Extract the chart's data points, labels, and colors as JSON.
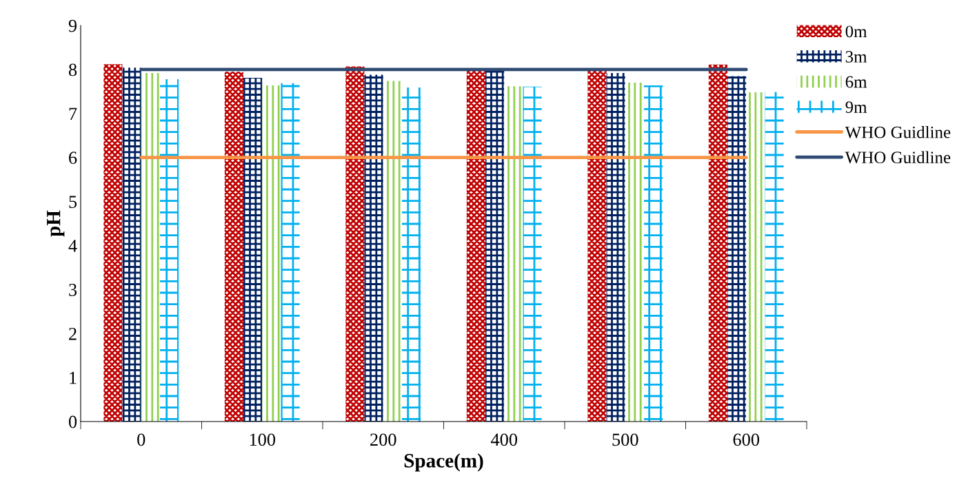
{
  "chart_data": {
    "type": "bar",
    "xlabel": "Space(m)",
    "ylabel": "pH",
    "categories": [
      "0",
      "100",
      "200",
      "400",
      "500",
      "600"
    ],
    "ylim": [
      0,
      9
    ],
    "yticks": [
      0,
      1,
      2,
      3,
      4,
      5,
      6,
      7,
      8,
      9
    ],
    "grid": false,
    "legend": "right",
    "series": [
      {
        "name": "0m",
        "color": "#c00000",
        "values": [
          8.12,
          7.95,
          8.07,
          8.0,
          7.99,
          8.11
        ]
      },
      {
        "name": "3m",
        "color": "#002060",
        "values": [
          8.04,
          7.81,
          7.88,
          7.97,
          7.92,
          7.85
        ]
      },
      {
        "name": "6m",
        "color": "#92d050",
        "values": [
          7.92,
          7.64,
          7.74,
          7.62,
          7.7,
          7.48
        ]
      },
      {
        "name": "9m",
        "color": "#00b0f0",
        "values": [
          7.78,
          7.69,
          7.59,
          7.61,
          7.64,
          7.49
        ]
      },
      {
        "name": "WHO Guidline",
        "type": "line",
        "color": "#f79646",
        "values": [
          6,
          6,
          6,
          6,
          6,
          6
        ]
      },
      {
        "name": "WHO Guidline",
        "type": "line",
        "color": "#2f4b73",
        "values": [
          8,
          8,
          8,
          8,
          8,
          8
        ]
      }
    ]
  }
}
